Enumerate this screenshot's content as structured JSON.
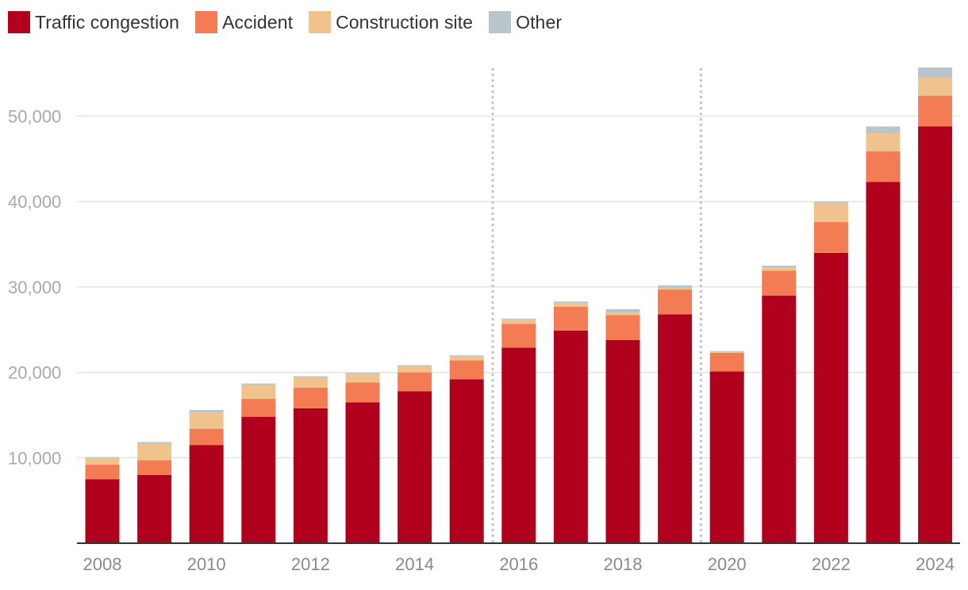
{
  "chart_data": {
    "type": "bar",
    "stacked": true,
    "legend_position": "top-left",
    "grid": true,
    "ylim": [
      0,
      56000
    ],
    "y_ticks": [
      10000,
      20000,
      30000,
      40000,
      50000
    ],
    "y_tick_labels": [
      "10,000",
      "20,000",
      "30,000",
      "40,000",
      "50,000"
    ],
    "categories": [
      "2008",
      "2009",
      "2010",
      "2011",
      "2012",
      "2013",
      "2014",
      "2015",
      "2016",
      "2017",
      "2018",
      "2019",
      "2020",
      "2021",
      "2022",
      "2023",
      "2024"
    ],
    "x_tick_labels": [
      "2008",
      "2010",
      "2012",
      "2014",
      "2016",
      "2018",
      "2020",
      "2022",
      "2024"
    ],
    "reference_lines": [
      "2015-2016",
      "2019-2020"
    ],
    "series": [
      {
        "name": "Traffic congestion",
        "color": "#b0001e",
        "values": [
          7500,
          8000,
          11500,
          14800,
          15800,
          16500,
          17800,
          19200,
          22900,
          24900,
          23800,
          26800,
          20100,
          29000,
          34000,
          42300,
          48800
        ]
      },
      {
        "name": "Accident",
        "color": "#f47c55",
        "values": [
          1700,
          1700,
          1900,
          2100,
          2400,
          2300,
          2200,
          2200,
          2800,
          2800,
          2900,
          2900,
          2200,
          2900,
          3600,
          3600,
          3600
        ]
      },
      {
        "name": "Construction site",
        "color": "#f0c38e",
        "values": [
          800,
          2000,
          1900,
          1600,
          1200,
          1000,
          700,
          500,
          500,
          400,
          300,
          200,
          100,
          400,
          2200,
          2100,
          2200
        ]
      },
      {
        "name": "Other",
        "color": "#b8c6cb",
        "values": [
          100,
          150,
          300,
          200,
          150,
          150,
          150,
          100,
          100,
          200,
          400,
          300,
          100,
          200,
          200,
          800,
          1100
        ]
      }
    ]
  }
}
